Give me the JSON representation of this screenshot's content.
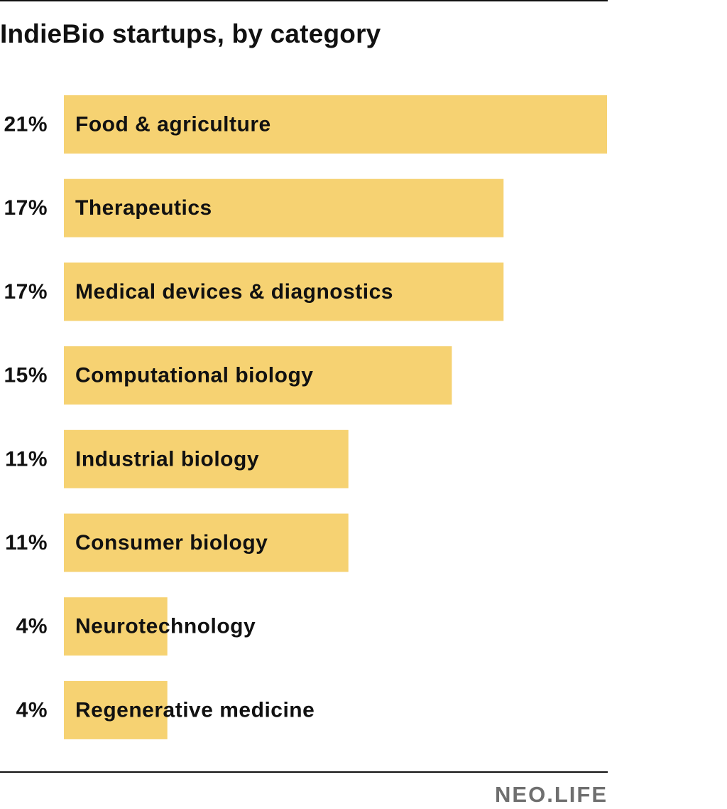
{
  "title": "IndieBio startups, by category",
  "brand": "NEO.LIFE",
  "chart_data": {
    "type": "bar",
    "orientation": "horizontal",
    "title": "IndieBio startups, by category",
    "xlabel": "",
    "ylabel": "",
    "xlim": [
      0,
      21
    ],
    "grid": false,
    "legend": "none",
    "bar_color": "#f6d272",
    "text_color": "#111111",
    "categories": [
      "Food & agriculture",
      "Therapeutics",
      "Medical devices & diagnostics",
      "Computational biology",
      "Industrial biology",
      "Consumer biology",
      "Neurotechnology",
      "Regenerative medicine"
    ],
    "values": [
      21,
      17,
      17,
      15,
      11,
      11,
      4,
      4
    ],
    "value_labels": [
      "21%",
      "17%",
      "17%",
      "15%",
      "11%",
      "11%",
      "4%",
      "4%"
    ]
  }
}
